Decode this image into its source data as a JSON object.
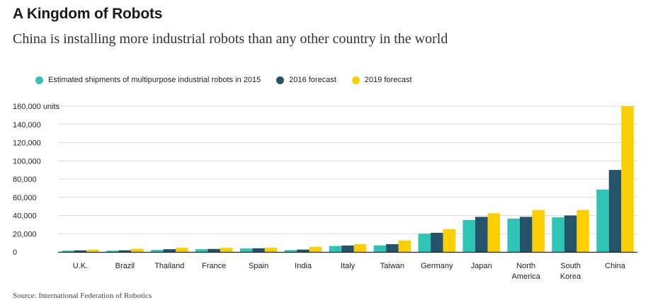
{
  "header": {
    "title": "A Kingdom of Robots",
    "subtitle": "China is installing more industrial robots than any other country in the world"
  },
  "source": "Source: International Federation of Robotics",
  "chart_data": {
    "type": "bar",
    "title": "A Kingdom of Robots",
    "subtitle": "China is installing more industrial robots than any other country in the world",
    "xlabel": "",
    "ylabel": "units",
    "ylim": [
      0,
      160000
    ],
    "yticks": [
      "0",
      "20,000",
      "40,000",
      "60,000",
      "80,000",
      "100,000",
      "120,000",
      "140,000",
      "160,000 units"
    ],
    "categories": [
      [
        "U.K."
      ],
      [
        "Brazil"
      ],
      [
        "Thailand"
      ],
      [
        "France"
      ],
      [
        "Spain"
      ],
      [
        "India"
      ],
      [
        "Italy"
      ],
      [
        "Taiwan"
      ],
      [
        "Germany"
      ],
      [
        "Japan"
      ],
      [
        "North",
        "America"
      ],
      [
        "South",
        "Korea"
      ],
      [
        "China"
      ]
    ],
    "series": [
      {
        "name": "Estimated shipments of multipurpose industrial robots in 2015",
        "color": "#2ec4b6",
        "values": [
          1500,
          1400,
          2200,
          3000,
          3800,
          2000,
          6500,
          7200,
          20000,
          35000,
          36500,
          38000,
          68500
        ]
      },
      {
        "name": "2016 forecast",
        "color": "#24536a",
        "values": [
          1700,
          1800,
          3000,
          3300,
          4000,
          2600,
          7000,
          8500,
          21000,
          38500,
          38500,
          40000,
          90000
        ]
      },
      {
        "name": "2019 forecast",
        "color": "#fcd000",
        "values": [
          2500,
          3500,
          4500,
          4500,
          4500,
          5500,
          8500,
          12500,
          25000,
          42500,
          46000,
          46000,
          160000
        ]
      }
    ],
    "legend_position": "top-left",
    "grid": true
  }
}
